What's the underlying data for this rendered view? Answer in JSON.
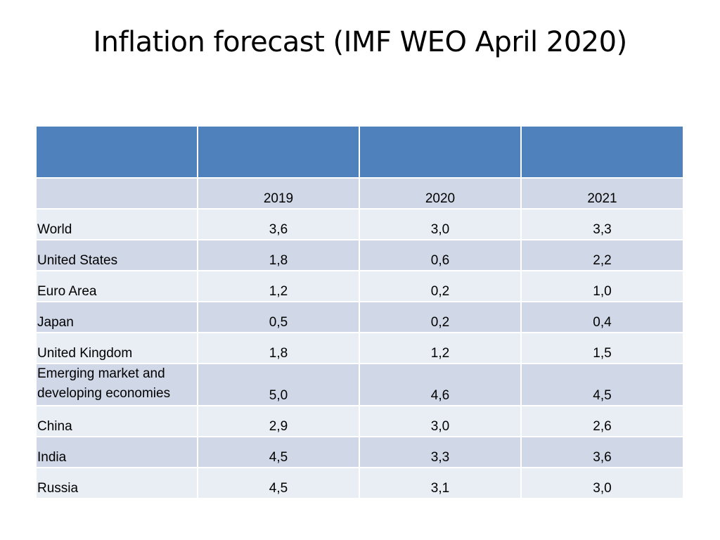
{
  "slide": {
    "title": "Inflation forecast (IMF WEO April 2020)"
  },
  "table": {
    "colors": {
      "header": "#4f81bd",
      "row_dark": "#d0d8e8",
      "row_light": "#e9edf4"
    },
    "columns": [
      "",
      "2019",
      "2020",
      "2021"
    ],
    "rows": [
      {
        "label": "World",
        "values": [
          "3,6",
          "3,0",
          "3,3"
        ]
      },
      {
        "label": "United States",
        "values": [
          "1,8",
          "0,6",
          "2,2"
        ]
      },
      {
        "label": "Euro Area",
        "values": [
          "1,2",
          "0,2",
          "1,0"
        ]
      },
      {
        "label": "Japan",
        "values": [
          "0,5",
          "0,2",
          "0,4"
        ]
      },
      {
        "label": "United Kingdom",
        "values": [
          "1,8",
          "1,2",
          "1,5"
        ]
      },
      {
        "label": "Emerging market and developing economies",
        "values": [
          "5,0",
          "4,6",
          "4,5"
        ]
      },
      {
        "label": "China",
        "values": [
          "2,9",
          "3,0",
          "2,6"
        ]
      },
      {
        "label": "India",
        "values": [
          "4,5",
          "3,3",
          "3,6"
        ]
      },
      {
        "label": "Russia",
        "values": [
          "4,5",
          "3,1",
          "3,0"
        ]
      }
    ]
  }
}
